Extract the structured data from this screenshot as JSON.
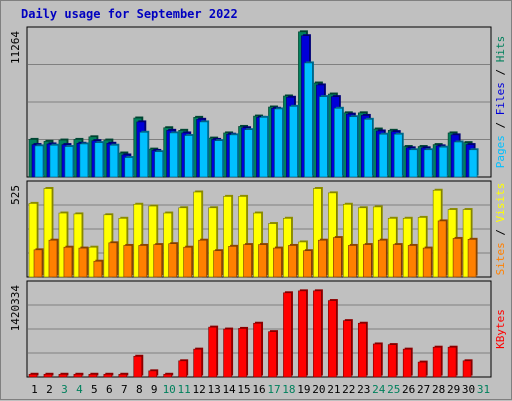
{
  "title": "Daily usage for September 2022",
  "colors": {
    "background": "#c0c0c0",
    "panel": "#c0c0c0",
    "hits": "#00805c",
    "files": "#0000d8",
    "pages": "#00c0ff",
    "visits": "#ffff00",
    "sites": "#ff8000",
    "kbytes": "#ff0000",
    "weekday_label": "#000000",
    "weekend_label": "#00805c",
    "title": "#0000c0"
  },
  "chart_data": [
    {
      "type": "bar",
      "panel": "hits_files_pages",
      "ymax_label": "11264",
      "ylim": [
        0,
        11264
      ],
      "categories": [
        "1",
        "2",
        "3",
        "4",
        "5",
        "6",
        "7",
        "8",
        "9",
        "10",
        "11",
        "12",
        "13",
        "14",
        "15",
        "16",
        "17",
        "18",
        "19",
        "20",
        "21",
        "22",
        "23",
        "24",
        "25",
        "26",
        "27",
        "28",
        "29",
        "30",
        "31"
      ],
      "weekend_days": [
        "3",
        "4",
        "10",
        "11",
        "17",
        "18",
        "24",
        "25",
        "31"
      ],
      "series": [
        {
          "name": "Hits",
          "values": [
            2900,
            2750,
            2850,
            2900,
            3100,
            2850,
            1850,
            4550,
            2150,
            3800,
            3600,
            4600,
            3000,
            3400,
            3900,
            4700,
            5400,
            6250,
            11200,
            7250,
            6400,
            4950,
            4950,
            3700,
            3600,
            2350,
            2350,
            2500,
            3400,
            2650,
            0
          ]
        },
        {
          "name": "Files",
          "values": [
            2500,
            2550,
            2500,
            2600,
            2800,
            2600,
            1700,
            4250,
            2050,
            3600,
            3400,
            4450,
            2900,
            3300,
            3800,
            4600,
            5300,
            6150,
            10900,
            7100,
            6200,
            4850,
            4750,
            3550,
            3500,
            2250,
            2250,
            2400,
            3250,
            2500,
            0
          ]
        },
        {
          "name": "Pages",
          "values": [
            2400,
            2450,
            2350,
            2550,
            2650,
            2450,
            1500,
            3450,
            1950,
            3400,
            3200,
            4250,
            2800,
            3250,
            3650,
            4600,
            5250,
            5450,
            8800,
            6200,
            5300,
            4650,
            4450,
            3300,
            3300,
            2100,
            2100,
            2300,
            2700,
            2100,
            0
          ]
        }
      ],
      "legend": [
        "Pages",
        "Files",
        "Hits"
      ]
    },
    {
      "type": "bar",
      "panel": "visits_sites",
      "ymax_label": "525",
      "ylim": [
        0,
        525
      ],
      "categories": [
        "1",
        "2",
        "3",
        "4",
        "5",
        "6",
        "7",
        "8",
        "9",
        "10",
        "11",
        "12",
        "13",
        "14",
        "15",
        "16",
        "17",
        "18",
        "19",
        "20",
        "21",
        "22",
        "23",
        "24",
        "25",
        "26",
        "27",
        "28",
        "29",
        "30",
        "31"
      ],
      "series": [
        {
          "name": "Visits",
          "values": [
            420,
            505,
            365,
            360,
            170,
            355,
            335,
            415,
            405,
            365,
            395,
            485,
            395,
            460,
            460,
            365,
            305,
            335,
            200,
            505,
            480,
            415,
            395,
            400,
            335,
            335,
            340,
            495,
            385,
            385,
            0
          ]
        },
        {
          "name": "Sites",
          "values": [
            155,
            210,
            170,
            165,
            90,
            195,
            180,
            180,
            185,
            190,
            170,
            210,
            150,
            175,
            185,
            185,
            165,
            180,
            150,
            210,
            225,
            180,
            185,
            210,
            185,
            180,
            165,
            320,
            220,
            215,
            0
          ]
        }
      ],
      "legend": [
        "Sites",
        "Visits"
      ]
    },
    {
      "type": "bar",
      "panel": "kbytes",
      "ymax_label": "1420334",
      "ylim": [
        0,
        1420334
      ],
      "categories": [
        "1",
        "2",
        "3",
        "4",
        "5",
        "6",
        "7",
        "8",
        "9",
        "10",
        "11",
        "12",
        "13",
        "14",
        "15",
        "16",
        "17",
        "18",
        "19",
        "20",
        "21",
        "22",
        "23",
        "24",
        "25",
        "26",
        "27",
        "28",
        "29",
        "30",
        "31"
      ],
      "series": [
        {
          "name": "KBytes",
          "values": [
            42000,
            42000,
            42000,
            42000,
            42000,
            42000,
            42000,
            320000,
            95000,
            42000,
            250000,
            430000,
            770000,
            740000,
            750000,
            830000,
            700000,
            1300000,
            1330000,
            1330000,
            1180000,
            870000,
            830000,
            510000,
            500000,
            430000,
            230000,
            460000,
            460000,
            250000,
            0
          ]
        }
      ],
      "legend": [
        "KBytes"
      ]
    }
  ]
}
